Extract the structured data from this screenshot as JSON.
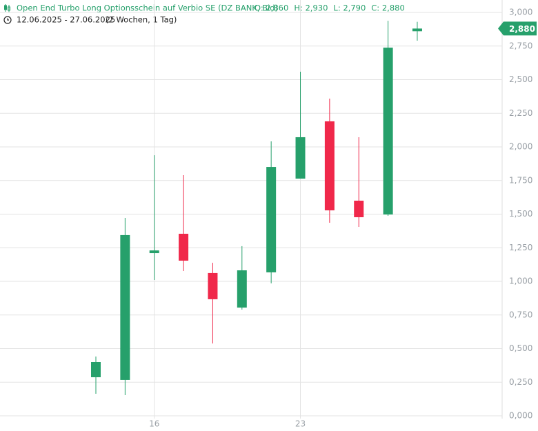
{
  "chart_data": {
    "type": "candlestick",
    "title": "Open End Turbo Long Optionsschein auf Verbio SE (DZ BANK, Bid)",
    "header_stats": [
      "O: 2,860",
      "H: 2,930",
      "L: 2,790",
      "C: 2,880"
    ],
    "date_range": "12.06.2025 - 27.06.2025",
    "period": "(2 Wochen, 1 Tag)",
    "last_price_label": "2,880",
    "categories": [
      null,
      null,
      "16",
      null,
      null,
      null,
      null,
      "23",
      null,
      null,
      null,
      null
    ],
    "open": [
      0.287,
      0.267,
      1.21,
      1.354,
      1.062,
      0.805,
      1.067,
      1.764,
      2.19,
      1.6,
      1.497,
      2.86
    ],
    "high": [
      0.441,
      1.472,
      1.938,
      1.79,
      1.138,
      1.262,
      2.041,
      2.559,
      2.359,
      2.072,
      2.938,
      2.93
    ],
    "low": [
      0.164,
      0.154,
      1.01,
      1.077,
      0.538,
      0.79,
      0.985,
      1.764,
      1.436,
      1.405,
      1.487,
      2.79
    ],
    "close": [
      0.4,
      1.344,
      1.23,
      1.154,
      0.867,
      1.082,
      1.851,
      2.072,
      1.528,
      1.477,
      2.738,
      2.88
    ],
    "up_color": "#26a06b",
    "down_color": "#f0284a",
    "ylim": [
      0,
      3
    ],
    "yticks": [
      {
        "value": 0,
        "label": "0,000"
      },
      {
        "value": 0.25,
        "label": "0,250"
      },
      {
        "value": 0.5,
        "label": "0,500"
      },
      {
        "value": 0.75,
        "label": "0,750"
      },
      {
        "value": 1,
        "label": "1,000"
      },
      {
        "value": 1.25,
        "label": "1,250"
      },
      {
        "value": 1.5,
        "label": "1,500"
      },
      {
        "value": 1.75,
        "label": "1,750"
      },
      {
        "value": 2,
        "label": "2,000"
      },
      {
        "value": 2.25,
        "label": "2,250"
      },
      {
        "value": 2.5,
        "label": "2,500"
      },
      {
        "value": 2.75,
        "label": "2,750"
      },
      {
        "value": 3,
        "label": "3,000"
      }
    ],
    "grid": true
  }
}
